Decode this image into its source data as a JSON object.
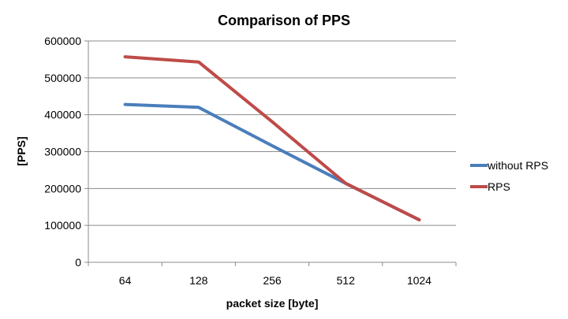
{
  "chart_data": {
    "type": "line",
    "title": "Comparison of PPS",
    "xlabel": "packet size [byte]",
    "ylabel": "[PPS]",
    "categories": [
      "64",
      "128",
      "256",
      "512",
      "1024"
    ],
    "yticks": [
      0,
      100000,
      200000,
      300000,
      400000,
      500000,
      600000
    ],
    "ylim": [
      0,
      600000
    ],
    "grid": true,
    "legend_position": "right",
    "series": [
      {
        "name": "without RPS",
        "color": "#4A7EBB",
        "values": [
          428000,
          420000,
          316000,
          214000,
          115000
        ]
      },
      {
        "name": "RPS",
        "color": "#BE4B48",
        "values": [
          557000,
          543000,
          381000,
          214000,
          115000
        ]
      }
    ]
  }
}
